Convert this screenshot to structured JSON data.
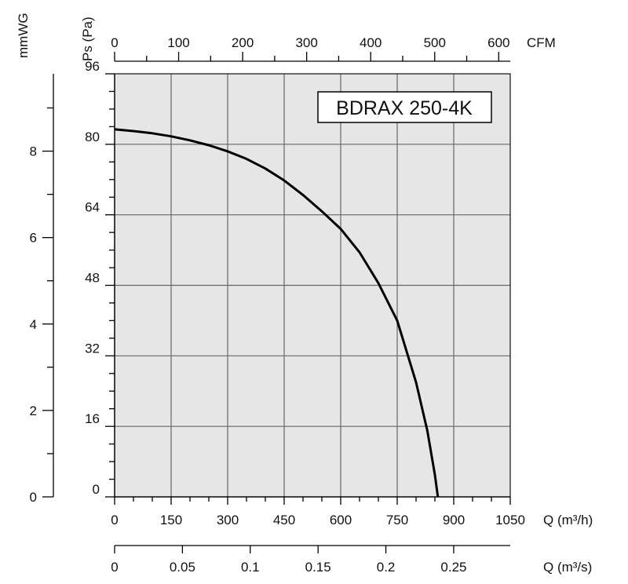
{
  "chart_data": {
    "type": "line",
    "title": "BDRAX 250-4K",
    "plot_background": "#e6e6e6",
    "grid_color": "#666666",
    "curve_color": "#000000",
    "axes": {
      "q_m3h": {
        "label": "Q (m³/h)",
        "range": [
          0,
          1050
        ],
        "ticks": [
          "0",
          "150",
          "300",
          "450",
          "600",
          "750",
          "900",
          "1050"
        ],
        "minor_step": 50
      },
      "q_m3s": {
        "label": "Q (m³/s)",
        "range": [
          0,
          0.2917
        ],
        "ticks": [
          "0",
          "0.05",
          "0.1",
          "0.15",
          "0.2",
          "0.25"
        ]
      },
      "cfm": {
        "label": "CFM",
        "range": [
          0,
          618
        ],
        "ticks": [
          "0",
          "100",
          "200",
          "300",
          "400",
          "500",
          "600"
        ],
        "minor_step": 50
      },
      "ps_pa": {
        "label": "Ps (Pa)",
        "range": [
          0,
          96
        ],
        "ticks": [
          "0",
          "16",
          "32",
          "48",
          "64",
          "80",
          "96"
        ],
        "minor_step": 4
      },
      "mmwg": {
        "label": "mmWG",
        "range": [
          0,
          9.79
        ],
        "ticks": [
          "0",
          "2",
          "4",
          "6",
          "8"
        ],
        "minor_step": 1
      }
    },
    "series": [
      {
        "x": [
          0,
          50,
          100,
          150,
          200,
          250,
          300,
          350,
          400,
          450,
          500,
          550,
          600,
          650,
          700,
          750,
          800,
          830,
          850,
          858
        ],
        "y": [
          83.4,
          83.0,
          82.5,
          81.8,
          80.9,
          79.8,
          78.4,
          76.7,
          74.5,
          71.8,
          68.5,
          64.8,
          60.8,
          55.5,
          48.5,
          40.0,
          26.0,
          15.0,
          5.0,
          0
        ]
      }
    ]
  }
}
